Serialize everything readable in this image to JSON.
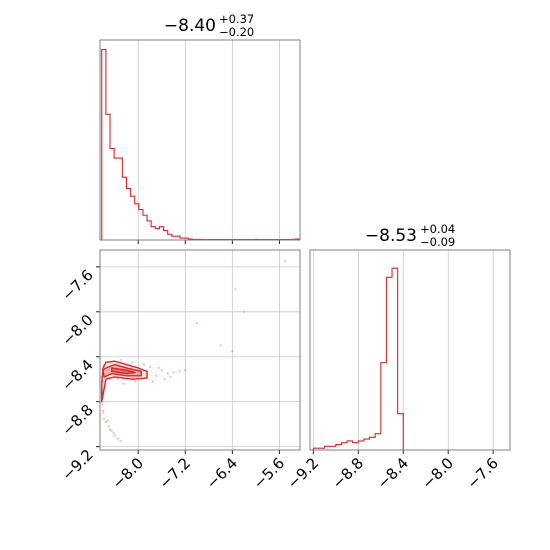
{
  "colors": {
    "series": "#d62728",
    "frame": "#808080",
    "grid": "#c8c8c8"
  },
  "chart_data": {
    "type": "corner",
    "parameters": [
      "",
      ""
    ],
    "panels": [
      {
        "id": "hist_param_1",
        "type": "histogram",
        "title": {
          "median": "−8.40",
          "upper": "+0.37",
          "lower": "−0.20"
        },
        "x_ticks": [
          "−8.0",
          "−7.2",
          "−6.4",
          "−5.6"
        ],
        "x_tick_values": [
          -8.0,
          -7.2,
          -6.4,
          -5.6
        ],
        "xlim": [
          -8.65,
          -5.25
        ],
        "ylim": [
          0,
          1.05
        ],
        "tick_labels_shown": false,
        "grid": true,
        "bin_edges": [
          -8.62,
          -8.55,
          -8.48,
          -8.41,
          -8.34,
          -8.27,
          -8.2,
          -8.13,
          -8.06,
          -7.99,
          -7.92,
          -7.85,
          -7.78,
          -7.71,
          -7.64,
          -7.57,
          -7.5,
          -7.43,
          -7.36,
          -7.29,
          -7.22,
          -7.15,
          -7.08,
          -7.01,
          -6.94,
          -6.87,
          -6.8,
          -6.73,
          -6.66,
          -6.59,
          -6.52,
          -6.45,
          -6.38,
          -6.31,
          -6.24,
          -6.17,
          -6.1,
          -6.03,
          -5.96,
          -5.89,
          -5.82,
          -5.75,
          -5.68,
          -5.61,
          -5.54,
          -5.47,
          -5.4,
          -5.33,
          -5.26
        ],
        "counts": [
          1.0,
          0.66,
          0.48,
          0.43,
          0.43,
          0.33,
          0.27,
          0.23,
          0.19,
          0.16,
          0.13,
          0.1,
          0.07,
          0.06,
          0.07,
          0.05,
          0.03,
          0.02,
          0.02,
          0.01,
          0.01,
          0.005,
          0.003,
          0.003,
          0.003,
          0.002,
          0.002,
          0.002,
          0.002,
          0.002,
          0.002,
          0.002,
          0.002,
          0.002,
          0.002,
          0.002,
          0.002,
          0.003,
          0.002,
          0.002,
          0.002,
          0.002,
          0.002,
          0.002,
          0.002,
          0.002,
          0.003,
          0.005
        ]
      },
      {
        "id": "contour_joint",
        "type": "2d_density",
        "x_ticks": [
          "−8.0",
          "−7.2",
          "−6.4",
          "−5.6"
        ],
        "x_tick_values": [
          -8.0,
          -7.2,
          -6.4,
          -5.6
        ],
        "y_ticks": [
          "−7.6",
          "−8.0",
          "−8.4",
          "−8.8",
          "−9.2"
        ],
        "y_tick_values": [
          -7.6,
          -8.0,
          -8.4,
          -8.8,
          -9.2
        ],
        "xlim": [
          -8.65,
          -5.25
        ],
        "ylim": [
          -9.23,
          -7.45
        ],
        "grid": true,
        "contours": [
          [
            [
              -8.6,
              -8.5
            ],
            [
              -8.55,
              -8.45
            ],
            [
              -8.4,
              -8.44
            ],
            [
              -8.2,
              -8.47
            ],
            [
              -8.0,
              -8.5
            ],
            [
              -7.85,
              -8.53
            ],
            [
              -7.85,
              -8.59
            ],
            [
              -8.1,
              -8.6
            ],
            [
              -8.4,
              -8.58
            ],
            [
              -8.55,
              -8.6
            ],
            [
              -8.62,
              -8.8
            ],
            [
              -8.62,
              -8.65
            ],
            [
              -8.6,
              -8.5
            ]
          ],
          [
            [
              -8.55,
              -8.5
            ],
            [
              -8.4,
              -8.47
            ],
            [
              -8.2,
              -8.5
            ],
            [
              -7.95,
              -8.53
            ],
            [
              -7.95,
              -8.57
            ],
            [
              -8.2,
              -8.57
            ],
            [
              -8.45,
              -8.55
            ],
            [
              -8.58,
              -8.58
            ],
            [
              -8.6,
              -8.52
            ],
            [
              -8.55,
              -8.5
            ]
          ],
          [
            [
              -8.45,
              -8.5
            ],
            [
              -8.2,
              -8.52
            ],
            [
              -8.05,
              -8.54
            ],
            [
              -8.2,
              -8.55
            ],
            [
              -8.45,
              -8.53
            ],
            [
              -8.45,
              -8.5
            ]
          ]
        ],
        "scatter": [
          [
            -8.62,
            -8.62
          ],
          [
            -8.61,
            -8.7
          ],
          [
            -8.6,
            -8.76
          ],
          [
            -8.61,
            -8.82
          ],
          [
            -8.59,
            -8.9
          ],
          [
            -8.58,
            -8.95
          ],
          [
            -8.6,
            -8.88
          ],
          [
            -8.62,
            -8.72
          ],
          [
            -8.55,
            -8.98
          ],
          [
            -8.5,
            -9.02
          ],
          [
            -8.45,
            -9.06
          ],
          [
            -8.4,
            -9.1
          ],
          [
            -8.35,
            -9.13
          ],
          [
            -8.3,
            -9.15
          ],
          [
            -8.52,
            -8.97
          ],
          [
            -8.48,
            -9.05
          ],
          [
            -8.42,
            -9.08
          ],
          [
            -8.62,
            -8.58
          ],
          [
            -8.6,
            -8.55
          ],
          [
            -8.58,
            -8.48
          ],
          [
            -7.6,
            -8.52
          ],
          [
            -7.5,
            -8.55
          ],
          [
            -7.4,
            -8.54
          ],
          [
            -7.3,
            -8.53
          ],
          [
            -7.2,
            -8.52
          ],
          [
            -7.7,
            -8.57
          ],
          [
            -7.8,
            -8.49
          ],
          [
            -7.65,
            -8.5
          ],
          [
            -7.45,
            -8.58
          ],
          [
            -8.3,
            -8.43
          ],
          [
            -8.1,
            -8.45
          ],
          [
            -7.9,
            -8.47
          ],
          [
            -8.05,
            -8.62
          ],
          [
            -7.75,
            -8.62
          ],
          [
            -7.55,
            -8.6
          ],
          [
            -8.35,
            -8.6
          ],
          [
            -8.25,
            -8.64
          ],
          [
            -6.35,
            -7.8
          ],
          [
            -6.2,
            -8.0
          ],
          [
            -6.4,
            -8.35
          ],
          [
            -5.5,
            -7.55
          ],
          [
            -7.0,
            -8.1
          ],
          [
            -6.6,
            -8.3
          ]
        ]
      },
      {
        "id": "hist_param_2",
        "type": "histogram",
        "title": {
          "median": "−8.53",
          "upper": "+0.04",
          "lower": "−0.09"
        },
        "x_ticks": [
          "−9.2",
          "−8.8",
          "−8.4",
          "−8.0",
          "−7.6"
        ],
        "x_tick_values": [
          -9.2,
          -8.8,
          -8.4,
          -8.0,
          -7.6
        ],
        "xlim": [
          -9.23,
          -7.45
        ],
        "ylim": [
          0,
          1.1
        ],
        "tick_labels_shown": true,
        "grid": true,
        "bin_edges": [
          -9.2,
          -9.15,
          -9.1,
          -9.05,
          -9.0,
          -8.95,
          -8.9,
          -8.85,
          -8.8,
          -8.75,
          -8.7,
          -8.65,
          -8.6,
          -8.55,
          -8.5,
          -8.45,
          -8.4
        ],
        "counts": [
          0.01,
          0.01,
          0.02,
          0.02,
          0.03,
          0.04,
          0.05,
          0.04,
          0.05,
          0.06,
          0.07,
          0.09,
          0.48,
          0.95,
          1.0,
          0.2
        ]
      }
    ]
  }
}
